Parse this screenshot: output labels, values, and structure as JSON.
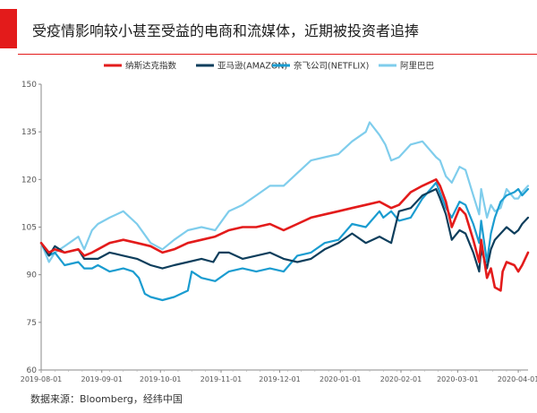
{
  "title": "受疫情影响较小甚至受益的电商和流媒体，近期被投资者追捧",
  "source": "数据来源：Bloomberg，经纬中国",
  "colors": {
    "accent": "#e31b1b"
  },
  "chart_data": {
    "type": "line",
    "ylim": [
      60,
      150
    ],
    "yticks": [
      60,
      75,
      90,
      105,
      120,
      135,
      150
    ],
    "xlim": [
      "2019-08-01",
      "2020-04-06"
    ],
    "xticks": [
      "2019-08-01",
      "2019-09-01",
      "2019-10-01",
      "2019-11-01",
      "2019-12-01",
      "2020-01-01",
      "2020-02-01",
      "2020-03-01",
      "2020-04-01"
    ],
    "grid": false,
    "legend": "top",
    "series": [
      {
        "name": "纳斯达克指数",
        "color": "#e31b1b",
        "points": [
          [
            "2019-08-01",
            100
          ],
          [
            "2019-08-05",
            97
          ],
          [
            "2019-08-08",
            98
          ],
          [
            "2019-08-13",
            97
          ],
          [
            "2019-08-20",
            98
          ],
          [
            "2019-08-23",
            96
          ],
          [
            "2019-08-27",
            97
          ],
          [
            "2019-08-30",
            98
          ],
          [
            "2019-09-05",
            100
          ],
          [
            "2019-09-12",
            101
          ],
          [
            "2019-09-19",
            100
          ],
          [
            "2019-09-26",
            99
          ],
          [
            "2019-10-02",
            97
          ],
          [
            "2019-10-08",
            98
          ],
          [
            "2019-10-15",
            100
          ],
          [
            "2019-10-22",
            101
          ],
          [
            "2019-10-29",
            102
          ],
          [
            "2019-11-05",
            104
          ],
          [
            "2019-11-12",
            105
          ],
          [
            "2019-11-19",
            105
          ],
          [
            "2019-11-26",
            106
          ],
          [
            "2019-12-03",
            104
          ],
          [
            "2019-12-10",
            106
          ],
          [
            "2019-12-17",
            108
          ],
          [
            "2019-12-24",
            109
          ],
          [
            "2019-12-31",
            110
          ],
          [
            "2020-01-07",
            111
          ],
          [
            "2020-01-14",
            112
          ],
          [
            "2020-01-21",
            113
          ],
          [
            "2020-01-27",
            111
          ],
          [
            "2020-01-31",
            112
          ],
          [
            "2020-02-06",
            116
          ],
          [
            "2020-02-12",
            118
          ],
          [
            "2020-02-19",
            120
          ],
          [
            "2020-02-21",
            118
          ],
          [
            "2020-02-24",
            113
          ],
          [
            "2020-02-27",
            105
          ],
          [
            "2020-03-02",
            111
          ],
          [
            "2020-03-05",
            109
          ],
          [
            "2020-03-09",
            101
          ],
          [
            "2020-03-12",
            94
          ],
          [
            "2020-03-13",
            101
          ],
          [
            "2020-03-16",
            89
          ],
          [
            "2020-03-18",
            92
          ],
          [
            "2020-03-20",
            86
          ],
          [
            "2020-03-23",
            85
          ],
          [
            "2020-03-24",
            91
          ],
          [
            "2020-03-26",
            94
          ],
          [
            "2020-03-30",
            93
          ],
          [
            "2020-04-01",
            91
          ],
          [
            "2020-04-03",
            93
          ],
          [
            "2020-04-06",
            97
          ]
        ]
      },
      {
        "name": "亚马逊(AMAZON)",
        "color": "#0e3e5c",
        "points": [
          [
            "2019-08-01",
            100
          ],
          [
            "2019-08-05",
            96
          ],
          [
            "2019-08-08",
            99
          ],
          [
            "2019-08-13",
            97
          ],
          [
            "2019-08-20",
            98
          ],
          [
            "2019-08-23",
            95
          ],
          [
            "2019-08-27",
            95
          ],
          [
            "2019-08-30",
            95
          ],
          [
            "2019-09-05",
            97
          ],
          [
            "2019-09-12",
            96
          ],
          [
            "2019-09-19",
            95
          ],
          [
            "2019-09-26",
            93
          ],
          [
            "2019-10-02",
            92
          ],
          [
            "2019-10-08",
            93
          ],
          [
            "2019-10-15",
            94
          ],
          [
            "2019-10-22",
            95
          ],
          [
            "2019-10-28",
            94
          ],
          [
            "2019-10-31",
            97
          ],
          [
            "2019-11-05",
            97
          ],
          [
            "2019-11-12",
            95
          ],
          [
            "2019-11-19",
            96
          ],
          [
            "2019-11-26",
            97
          ],
          [
            "2019-12-03",
            95
          ],
          [
            "2019-12-10",
            94
          ],
          [
            "2019-12-17",
            95
          ],
          [
            "2019-12-24",
            98
          ],
          [
            "2019-12-31",
            100
          ],
          [
            "2020-01-07",
            103
          ],
          [
            "2020-01-14",
            100
          ],
          [
            "2020-01-21",
            102
          ],
          [
            "2020-01-27",
            100
          ],
          [
            "2020-01-31",
            110
          ],
          [
            "2020-02-06",
            111
          ],
          [
            "2020-02-12",
            115
          ],
          [
            "2020-02-19",
            117
          ],
          [
            "2020-02-21",
            114
          ],
          [
            "2020-02-24",
            109
          ],
          [
            "2020-02-27",
            101
          ],
          [
            "2020-03-02",
            104
          ],
          [
            "2020-03-05",
            103
          ],
          [
            "2020-03-09",
            97
          ],
          [
            "2020-03-12",
            91
          ],
          [
            "2020-03-13",
            98
          ],
          [
            "2020-03-16",
            92
          ],
          [
            "2020-03-18",
            98
          ],
          [
            "2020-03-20",
            101
          ],
          [
            "2020-03-23",
            103
          ],
          [
            "2020-03-26",
            105
          ],
          [
            "2020-03-30",
            103
          ],
          [
            "2020-04-01",
            104
          ],
          [
            "2020-04-03",
            106
          ],
          [
            "2020-04-06",
            108
          ]
        ]
      },
      {
        "name": "奈飞公司(NETFLIX)",
        "color": "#1a9cd0",
        "points": [
          [
            "2019-08-01",
            100
          ],
          [
            "2019-08-05",
            96
          ],
          [
            "2019-08-08",
            97
          ],
          [
            "2019-08-13",
            93
          ],
          [
            "2019-08-20",
            94
          ],
          [
            "2019-08-23",
            92
          ],
          [
            "2019-08-27",
            92
          ],
          [
            "2019-08-30",
            93
          ],
          [
            "2019-09-05",
            91
          ],
          [
            "2019-09-12",
            92
          ],
          [
            "2019-09-17",
            91
          ],
          [
            "2019-09-20",
            89
          ],
          [
            "2019-09-23",
            84
          ],
          [
            "2019-09-26",
            83
          ],
          [
            "2019-10-02",
            82
          ],
          [
            "2019-10-08",
            83
          ],
          [
            "2019-10-15",
            85
          ],
          [
            "2019-10-17",
            91
          ],
          [
            "2019-10-22",
            89
          ],
          [
            "2019-10-29",
            88
          ],
          [
            "2019-11-05",
            91
          ],
          [
            "2019-11-12",
            92
          ],
          [
            "2019-11-19",
            91
          ],
          [
            "2019-11-26",
            92
          ],
          [
            "2019-12-03",
            91
          ],
          [
            "2019-12-10",
            96
          ],
          [
            "2019-12-17",
            97
          ],
          [
            "2019-12-24",
            100
          ],
          [
            "2019-12-31",
            101
          ],
          [
            "2020-01-07",
            106
          ],
          [
            "2020-01-14",
            105
          ],
          [
            "2020-01-21",
            110
          ],
          [
            "2020-01-23",
            108
          ],
          [
            "2020-01-27",
            110
          ],
          [
            "2020-01-31",
            107
          ],
          [
            "2020-02-06",
            108
          ],
          [
            "2020-02-12",
            114
          ],
          [
            "2020-02-19",
            119
          ],
          [
            "2020-02-24",
            111
          ],
          [
            "2020-02-27",
            108
          ],
          [
            "2020-03-02",
            113
          ],
          [
            "2020-03-05",
            112
          ],
          [
            "2020-03-09",
            106
          ],
          [
            "2020-03-12",
            100
          ],
          [
            "2020-03-13",
            107
          ],
          [
            "2020-03-16",
            94
          ],
          [
            "2020-03-18",
            103
          ],
          [
            "2020-03-20",
            108
          ],
          [
            "2020-03-23",
            113
          ],
          [
            "2020-03-26",
            115
          ],
          [
            "2020-03-30",
            116
          ],
          [
            "2020-04-01",
            117
          ],
          [
            "2020-04-03",
            115
          ],
          [
            "2020-04-06",
            117
          ]
        ]
      },
      {
        "name": "阿里巴巴",
        "color": "#7fcdec",
        "points": [
          [
            "2019-08-01",
            100
          ],
          [
            "2019-08-05",
            94
          ],
          [
            "2019-08-08",
            97
          ],
          [
            "2019-08-13",
            99
          ],
          [
            "2019-08-20",
            102
          ],
          [
            "2019-08-23",
            98
          ],
          [
            "2019-08-27",
            104
          ],
          [
            "2019-08-30",
            106
          ],
          [
            "2019-09-05",
            108
          ],
          [
            "2019-09-12",
            110
          ],
          [
            "2019-09-19",
            106
          ],
          [
            "2019-09-26",
            100
          ],
          [
            "2019-10-02",
            98
          ],
          [
            "2019-10-08",
            101
          ],
          [
            "2019-10-15",
            104
          ],
          [
            "2019-10-22",
            105
          ],
          [
            "2019-10-29",
            104
          ],
          [
            "2019-11-05",
            110
          ],
          [
            "2019-11-12",
            112
          ],
          [
            "2019-11-19",
            115
          ],
          [
            "2019-11-26",
            118
          ],
          [
            "2019-12-03",
            118
          ],
          [
            "2019-12-10",
            122
          ],
          [
            "2019-12-17",
            126
          ],
          [
            "2019-12-24",
            127
          ],
          [
            "2019-12-31",
            128
          ],
          [
            "2020-01-07",
            132
          ],
          [
            "2020-01-14",
            135
          ],
          [
            "2020-01-16",
            138
          ],
          [
            "2020-01-21",
            134
          ],
          [
            "2020-01-24",
            131
          ],
          [
            "2020-01-27",
            126
          ],
          [
            "2020-01-31",
            127
          ],
          [
            "2020-02-06",
            131
          ],
          [
            "2020-02-12",
            132
          ],
          [
            "2020-02-19",
            127
          ],
          [
            "2020-02-21",
            126
          ],
          [
            "2020-02-24",
            121
          ],
          [
            "2020-02-27",
            119
          ],
          [
            "2020-03-02",
            124
          ],
          [
            "2020-03-05",
            123
          ],
          [
            "2020-03-09",
            115
          ],
          [
            "2020-03-12",
            109
          ],
          [
            "2020-03-13",
            117
          ],
          [
            "2020-03-16",
            108
          ],
          [
            "2020-03-18",
            112
          ],
          [
            "2020-03-20",
            110
          ],
          [
            "2020-03-23",
            111
          ],
          [
            "2020-03-26",
            117
          ],
          [
            "2020-03-30",
            114
          ],
          [
            "2020-04-01",
            114
          ],
          [
            "2020-04-03",
            116
          ],
          [
            "2020-04-06",
            118
          ]
        ]
      }
    ]
  }
}
